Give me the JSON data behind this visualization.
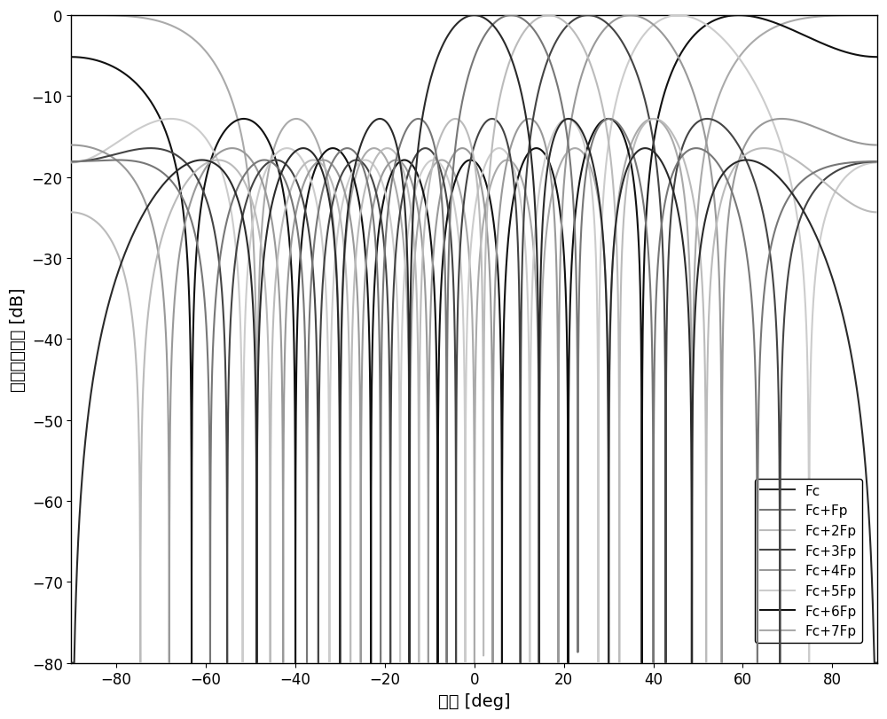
{
  "title": "",
  "xlabel": "角度 [deg]",
  "ylabel": "归一化方向图 [dB]",
  "xlim": [
    -90,
    90
  ],
  "ylim": [
    -80,
    0
  ],
  "xticks": [
    -80,
    -60,
    -40,
    -20,
    0,
    20,
    40,
    60,
    80
  ],
  "yticks": [
    0,
    -10,
    -20,
    -30,
    -40,
    -50,
    -60,
    -70,
    -80
  ],
  "legend_labels": [
    "Fc",
    "Fc+Fp",
    "Fc+2Fp",
    "Fc+3Fp",
    "Fc+4Fp",
    "Fc+5Fp",
    "Fc+6Fp",
    "Fc+7Fp"
  ],
  "colors": [
    "#2a2a2a",
    "#888888",
    "#cccccc",
    "#555555",
    "#aaaaaa",
    "#dddddd",
    "#111111",
    "#bbbbbb"
  ],
  "N": 8,
  "d_over_lambda": 0.5,
  "sin_shift_per_fp": 0.143,
  "background_color": "#ffffff",
  "line_width": 1.5,
  "figsize": [
    10.0,
    8.12
  ],
  "dpi": 100
}
